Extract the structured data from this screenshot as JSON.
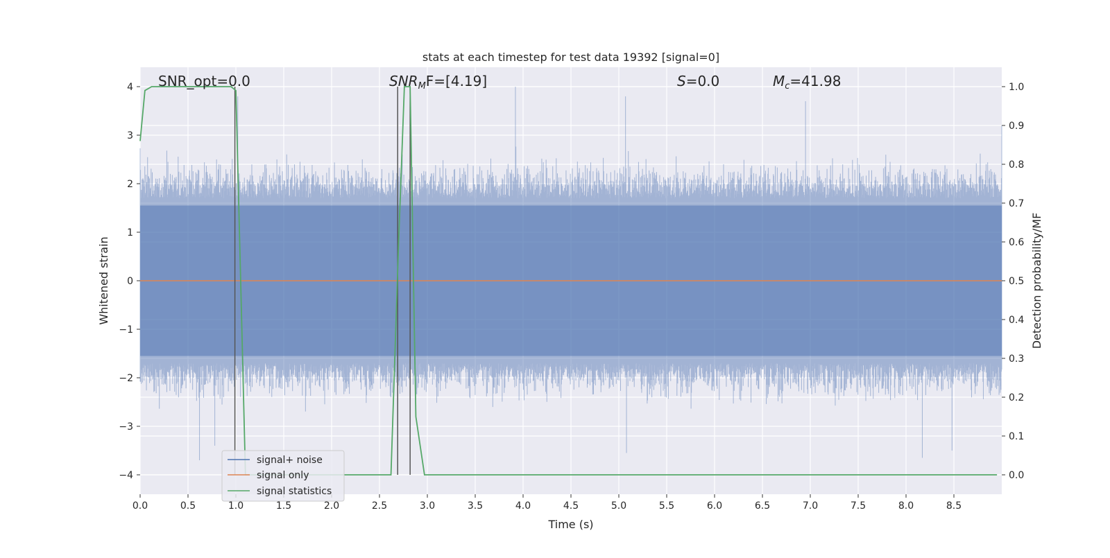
{
  "chart_data": {
    "type": "line",
    "title": "stats at each timestep for test data 19392 [signal=0]",
    "xlabel": "Time (s)",
    "ylabel": "Whitened strain",
    "ylabel_right": "Detection probability/MF",
    "xlim": [
      0,
      9.0
    ],
    "ylim_left": [
      -4.4,
      4.4
    ],
    "ylim_right": [
      -0.05,
      1.05
    ],
    "grid": true,
    "legend_position": "lower-left",
    "x_ticks": [
      0,
      0.5,
      1.0,
      1.5,
      2.0,
      2.5,
      3.0,
      3.5,
      4.0,
      4.5,
      5.0,
      5.5,
      6.0,
      6.5,
      7.0,
      7.5,
      8.0,
      8.5
    ],
    "x_tick_labels": [
      "0.0",
      "0.5",
      "1.0",
      "1.5",
      "2.0",
      "2.5",
      "3.0",
      "3.5",
      "4.0",
      "4.5",
      "5.0",
      "5.5",
      "6.0",
      "6.5",
      "7.0",
      "7.5",
      "8.0",
      "8.5"
    ],
    "y_ticks_left": [
      4,
      3,
      2,
      1,
      0,
      -1,
      -2,
      -3,
      -4
    ],
    "y_tick_labels_left": [
      "4",
      "3",
      "2",
      "1",
      "0",
      "−1",
      "−2",
      "−3",
      "−4"
    ],
    "y_ticks_right": [
      1.0,
      0.9,
      0.8,
      0.7,
      0.6,
      0.5,
      0.4,
      0.3,
      0.2,
      0.1,
      0.0
    ],
    "y_tick_labels_right": [
      "1.0",
      "0.9",
      "0.8",
      "0.7",
      "0.6",
      "0.5",
      "0.4",
      "0.3",
      "0.2",
      "0.1",
      "0.0"
    ],
    "annotations": {
      "snr_opt": "SNR_opt=0.0",
      "snr_mf_label": "SNR",
      "snr_mf_sub": "M",
      "snr_mf_rest": "F=[4.19]",
      "s_label": "S",
      "s_rest": "=0.0",
      "mc_label": "M",
      "mc_sub": "c",
      "mc_rest": "=41.98"
    },
    "series": [
      {
        "name": "signal+ noise",
        "color": "#4c72b0",
        "axis": "left",
        "description_values": "noise band, envelope roughly ±2 with peaks to ±4",
        "peak_markers": [
          {
            "x": 1.02,
            "y": 3.8
          },
          {
            "x": 3.92,
            "y": 4.0
          },
          {
            "x": 5.07,
            "y": 3.8
          },
          {
            "x": 6.95,
            "y": 3.7
          },
          {
            "x": 9.0,
            "y": 3.2
          }
        ],
        "trough_markers": [
          {
            "x": 0.62,
            "y": -3.7
          },
          {
            "x": 0.78,
            "y": -3.4
          },
          {
            "x": 5.08,
            "y": -3.55
          },
          {
            "x": 8.17,
            "y": -3.65
          },
          {
            "x": 8.48,
            "y": -3.5
          }
        ]
      },
      {
        "name": "signal only",
        "color": "#dd8452",
        "axis": "left",
        "x": [
          0,
          9.0
        ],
        "y": [
          0,
          0
        ]
      },
      {
        "name": "signal statistics",
        "color": "#55a868",
        "axis": "right",
        "x": [
          0,
          0.05,
          0.12,
          0.2,
          0.5,
          0.8,
          0.95,
          1.0,
          1.05,
          1.1,
          2.2,
          2.62,
          2.7,
          2.76,
          2.82,
          2.88,
          2.97,
          3.3,
          5.0,
          6.0,
          7.0,
          8.0,
          8.95
        ],
        "y": [
          0.86,
          0.99,
          1.0,
          1.0,
          1.0,
          1.0,
          1.0,
          0.99,
          0.5,
          0.0,
          0.0,
          0.0,
          0.6,
          1.0,
          1.0,
          0.15,
          0.0,
          0.0,
          0.0,
          0.0,
          0.0,
          0.0,
          0.0
        ]
      }
    ],
    "vertical_markers": [
      {
        "x": 0.99,
        "color": "#555555"
      },
      {
        "x": 2.69,
        "color": "#555555"
      },
      {
        "x": 2.82,
        "color": "#555555"
      }
    ]
  }
}
